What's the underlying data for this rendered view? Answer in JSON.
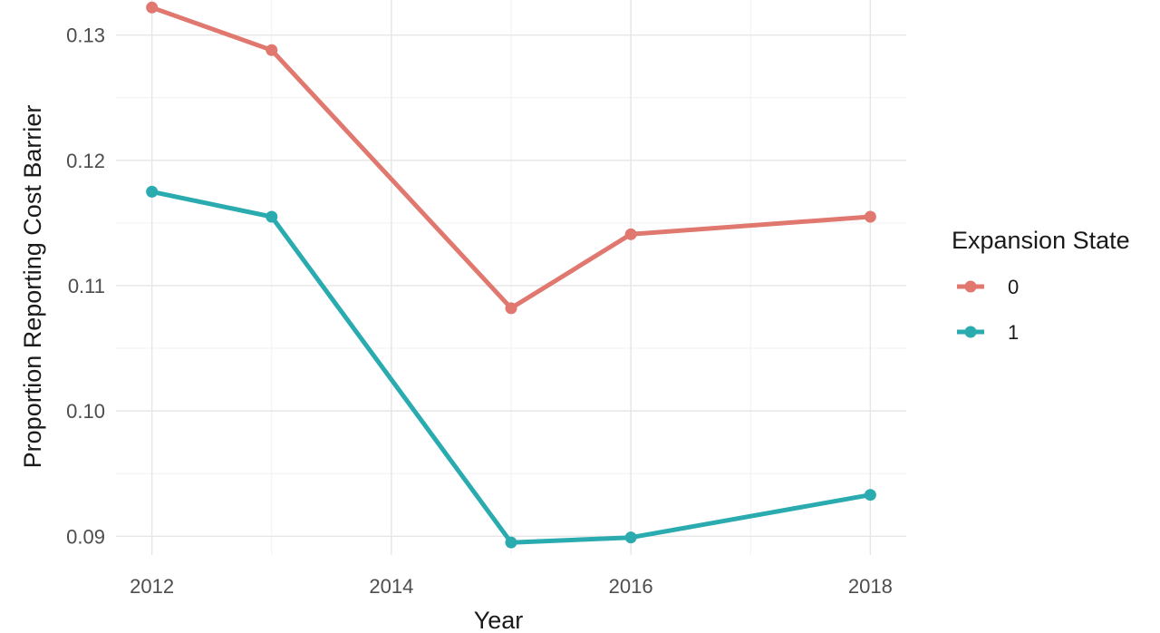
{
  "chart_data": {
    "type": "line",
    "xlabel": "Year",
    "ylabel": "Proportion Reporting Cost Barrier",
    "x_ticks": [
      "2012",
      "2014",
      "2016",
      "2018"
    ],
    "y_ticks": [
      "0.09",
      "0.10",
      "0.11",
      "0.12",
      "0.13"
    ],
    "xlim": [
      2011.7,
      2018.3
    ],
    "ylim": [
      0.0885,
      0.1328
    ],
    "grid": true,
    "legend": {
      "title": "Expansion State",
      "position": "right"
    },
    "series": [
      {
        "name": "0",
        "color": "#E0786F",
        "x": [
          2012,
          2013,
          2015,
          2016,
          2018
        ],
        "y": [
          0.1322,
          0.1288,
          0.1082,
          0.1141,
          0.1155
        ]
      },
      {
        "name": "1",
        "color": "#2AABAF",
        "x": [
          2012,
          2013,
          2015,
          2016,
          2018
        ],
        "y": [
          0.1175,
          0.1155,
          0.0895,
          0.0899,
          0.0933
        ]
      }
    ]
  }
}
